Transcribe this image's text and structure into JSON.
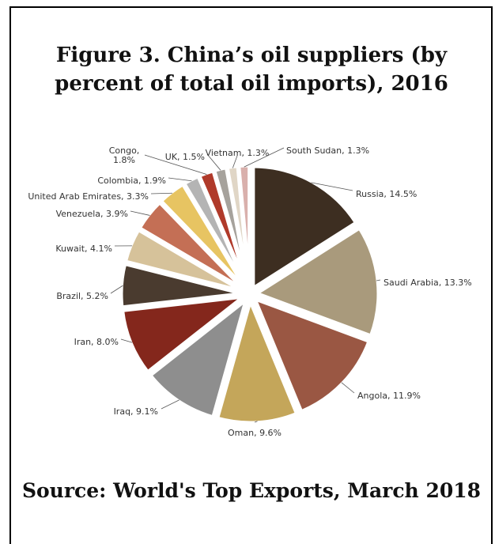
{
  "title": "Figure 3. China’s oil suppliers (by percent of total oil imports), 2016",
  "source": "Source: World's Top Exports, March 2018",
  "chart_data": {
    "type": "pie",
    "title": "Figure 3. China’s oil suppliers (by percent of total oil imports), 2016",
    "unit": "%",
    "exploded": true,
    "slices": [
      {
        "label": "Russia",
        "value": 14.5,
        "text": "Russia, 14.5%",
        "color": "#3d2e21"
      },
      {
        "label": "Saudi Arabia",
        "value": 13.3,
        "text": "Saudi Arabia, 13.3%",
        "color": "#a99a7c"
      },
      {
        "label": "Angola",
        "value": 11.9,
        "text": "Angola, 11.9%",
        "color": "#9a5743"
      },
      {
        "label": "Oman",
        "value": 9.6,
        "text": "Oman, 9.6%",
        "color": "#c4a65a"
      },
      {
        "label": "Iraq",
        "value": 9.1,
        "text": "Iraq, 9.1%",
        "color": "#8e8e8e"
      },
      {
        "label": "Iran",
        "value": 8.0,
        "text": "Iran, 8.0%",
        "color": "#84271c"
      },
      {
        "label": "Brazil",
        "value": 5.2,
        "text": "Brazil, 5.2%",
        "color": "#4a3b2f"
      },
      {
        "label": "Kuwait",
        "value": 4.1,
        "text": "Kuwait, 4.1%",
        "color": "#d6c29a"
      },
      {
        "label": "Venezuela",
        "value": 3.9,
        "text": "Venezuela, 3.9%",
        "color": "#c46f55"
      },
      {
        "label": "United Arab Emirates",
        "value": 3.3,
        "text": "United Arab Emirates, 3.3%",
        "color": "#e7c462"
      },
      {
        "label": "Colombia",
        "value": 1.9,
        "text": "Colombia, 1.9%",
        "color": "#b4b4b4"
      },
      {
        "label": "Congo",
        "value": 1.8,
        "text": "Congo,\n1.8%",
        "color": "#b03a2a"
      },
      {
        "label": "UK",
        "value": 1.5,
        "text": "UK, 1.5%",
        "color": "#a6a29c"
      },
      {
        "label": "Vietnam",
        "value": 1.3,
        "text": "Vietnam, 1.3%",
        "color": "#e0d6c6"
      },
      {
        "label": "South Sudan",
        "value": 1.3,
        "text": "South Sudan, 1.3%",
        "color": "#d9b0ac"
      }
    ]
  }
}
